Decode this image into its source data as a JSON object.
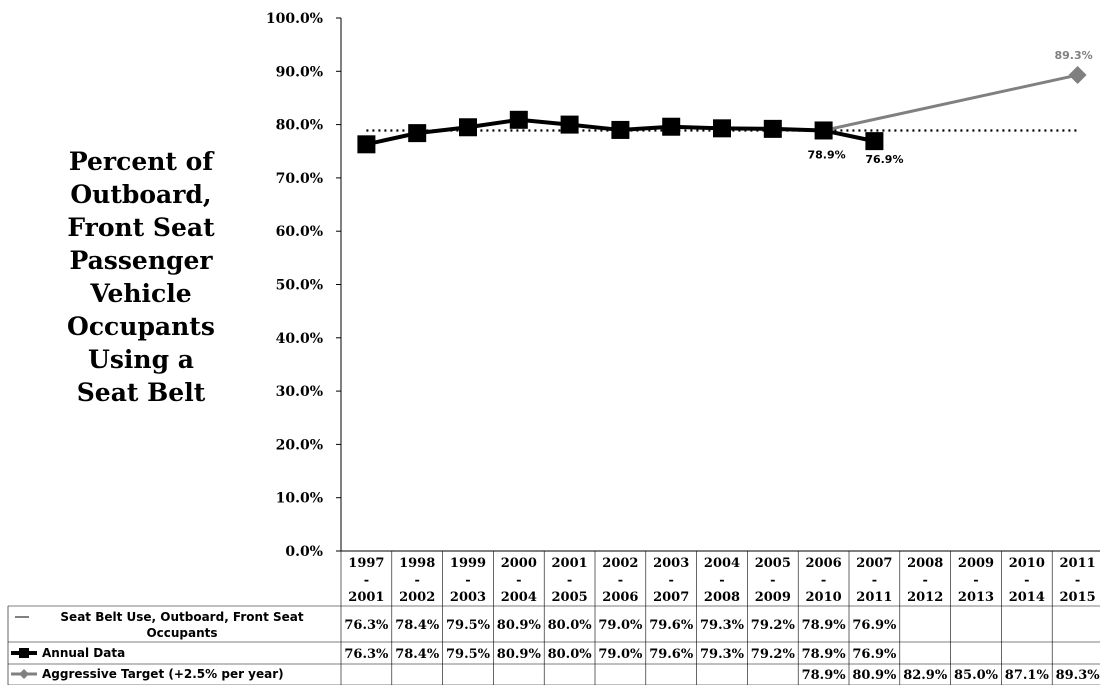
{
  "y_axis_title_lines": [
    "Percent of",
    "Outboard,",
    "Front Seat",
    "Passenger",
    "Vehicle",
    "Occupants",
    "Using a",
    "Seat Belt"
  ],
  "chart_data": {
    "type": "line",
    "ylim": [
      0,
      100
    ],
    "yticks": [
      "0.0%",
      "10.0%",
      "20.0%",
      "30.0%",
      "40.0%",
      "50.0%",
      "60.0%",
      "70.0%",
      "80.0%",
      "90.0%",
      "100.0%"
    ],
    "categories": [
      [
        "1997",
        "-",
        "2001"
      ],
      [
        "1998",
        "-",
        "2002"
      ],
      [
        "1999",
        "-",
        "2003"
      ],
      [
        "2000",
        "-",
        "2004"
      ],
      [
        "2001",
        "-",
        "2005"
      ],
      [
        "2002",
        "-",
        "2006"
      ],
      [
        "2003",
        "-",
        "2007"
      ],
      [
        "2004",
        "-",
        "2008"
      ],
      [
        "2005",
        "-",
        "2009"
      ],
      [
        "2006",
        "-",
        "2010"
      ],
      [
        "2007",
        "-",
        "2011"
      ],
      [
        "2008",
        "-",
        "2012"
      ],
      [
        "2009",
        "-",
        "2013"
      ],
      [
        "2010",
        "-",
        "2014"
      ],
      [
        "2011",
        "-",
        "2015"
      ]
    ],
    "series": [
      {
        "name": "Seat Belt Use, Outboard, Front Seat Occupants",
        "legend_lines": [
          "Seat Belt Use, Outboard, Front Seat",
          "Occupants"
        ],
        "style": "dotted",
        "color": "#000000",
        "trend": [
          78.9,
          78.9
        ],
        "values": [
          76.3,
          78.4,
          79.5,
          80.9,
          80.0,
          79.0,
          79.6,
          79.3,
          79.2,
          78.9,
          76.9,
          null,
          null,
          null,
          null
        ],
        "labels": [
          "76.3%",
          "78.4%",
          "79.5%",
          "80.9%",
          "80.0%",
          "79.0%",
          "79.6%",
          "79.3%",
          "79.2%",
          "78.9%",
          "76.9%",
          "",
          "",
          "",
          ""
        ]
      },
      {
        "name": "Annual Data",
        "style": "solid-square",
        "color": "#000000",
        "values": [
          76.3,
          78.4,
          79.5,
          80.9,
          80.0,
          79.0,
          79.6,
          79.3,
          79.2,
          78.9,
          76.9,
          null,
          null,
          null,
          null
        ],
        "labels": [
          "76.3%",
          "78.4%",
          "79.5%",
          "80.9%",
          "80.0%",
          "79.0%",
          "79.6%",
          "79.3%",
          "79.2%",
          "78.9%",
          "76.9%",
          "",
          "",
          "",
          ""
        ]
      },
      {
        "name": "Aggressive Target (+2.5% per year)",
        "style": "solid-diamond",
        "color": "#808080",
        "values": [
          null,
          null,
          null,
          null,
          null,
          null,
          null,
          null,
          null,
          78.9,
          80.9,
          82.9,
          85.0,
          87.1,
          89.3
        ],
        "labels": [
          "",
          "",
          "",
          "",
          "",
          "",
          "",
          "",
          "",
          "78.9%",
          "80.9%",
          "82.9%",
          "85.0%",
          "87.1%",
          "89.3%"
        ]
      }
    ],
    "annotations": [
      {
        "text": "78.9%",
        "category_index": 9,
        "value": 78.9
      },
      {
        "text": "76.9%",
        "category_index": 10,
        "value": 76.9
      },
      {
        "text": "89.3%",
        "category_index": 14,
        "value": 89.3
      }
    ],
    "grid": false,
    "legend": "data-table"
  }
}
